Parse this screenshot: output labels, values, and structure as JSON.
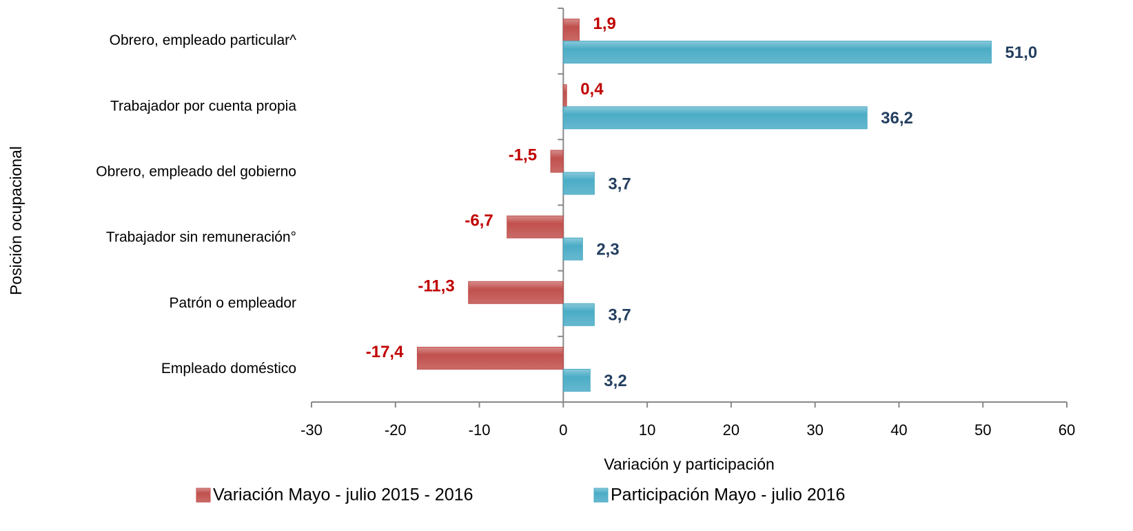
{
  "chart_data": {
    "type": "hbar",
    "categories": [
      "Obrero, empleado particular^",
      "Trabajador por cuenta propia",
      "Obrero, empleado del gobierno",
      "Trabajador sin remuneración°",
      "Patrón o empleador",
      "Empleado doméstico"
    ],
    "series": [
      {
        "name": "Variación Mayo - julio 2015 - 2016",
        "color": "#c0504d",
        "label_color": "#c00000",
        "values": [
          1.9,
          0.4,
          -1.5,
          -6.7,
          -11.3,
          -17.4
        ],
        "value_labels": [
          "1,9",
          "0,4",
          "-1,5",
          "-6,7",
          "-11,3",
          "-17,4"
        ]
      },
      {
        "name": "Participación Mayo - julio 2016",
        "color": "#4bacc6",
        "label_color": "#243f60",
        "values": [
          51.0,
          36.2,
          3.7,
          2.3,
          3.7,
          3.2
        ],
        "value_labels": [
          "51,0",
          "36,2",
          "3,7",
          "2,3",
          "3,7",
          "3,2"
        ]
      }
    ],
    "xlabel": "Variación y participación",
    "ylabel": "Posición ocupacional",
    "xlim": [
      -30,
      60
    ],
    "xticks": [
      -30,
      -20,
      -10,
      0,
      10,
      20,
      30,
      40,
      50,
      60
    ],
    "legend": "bottom"
  }
}
